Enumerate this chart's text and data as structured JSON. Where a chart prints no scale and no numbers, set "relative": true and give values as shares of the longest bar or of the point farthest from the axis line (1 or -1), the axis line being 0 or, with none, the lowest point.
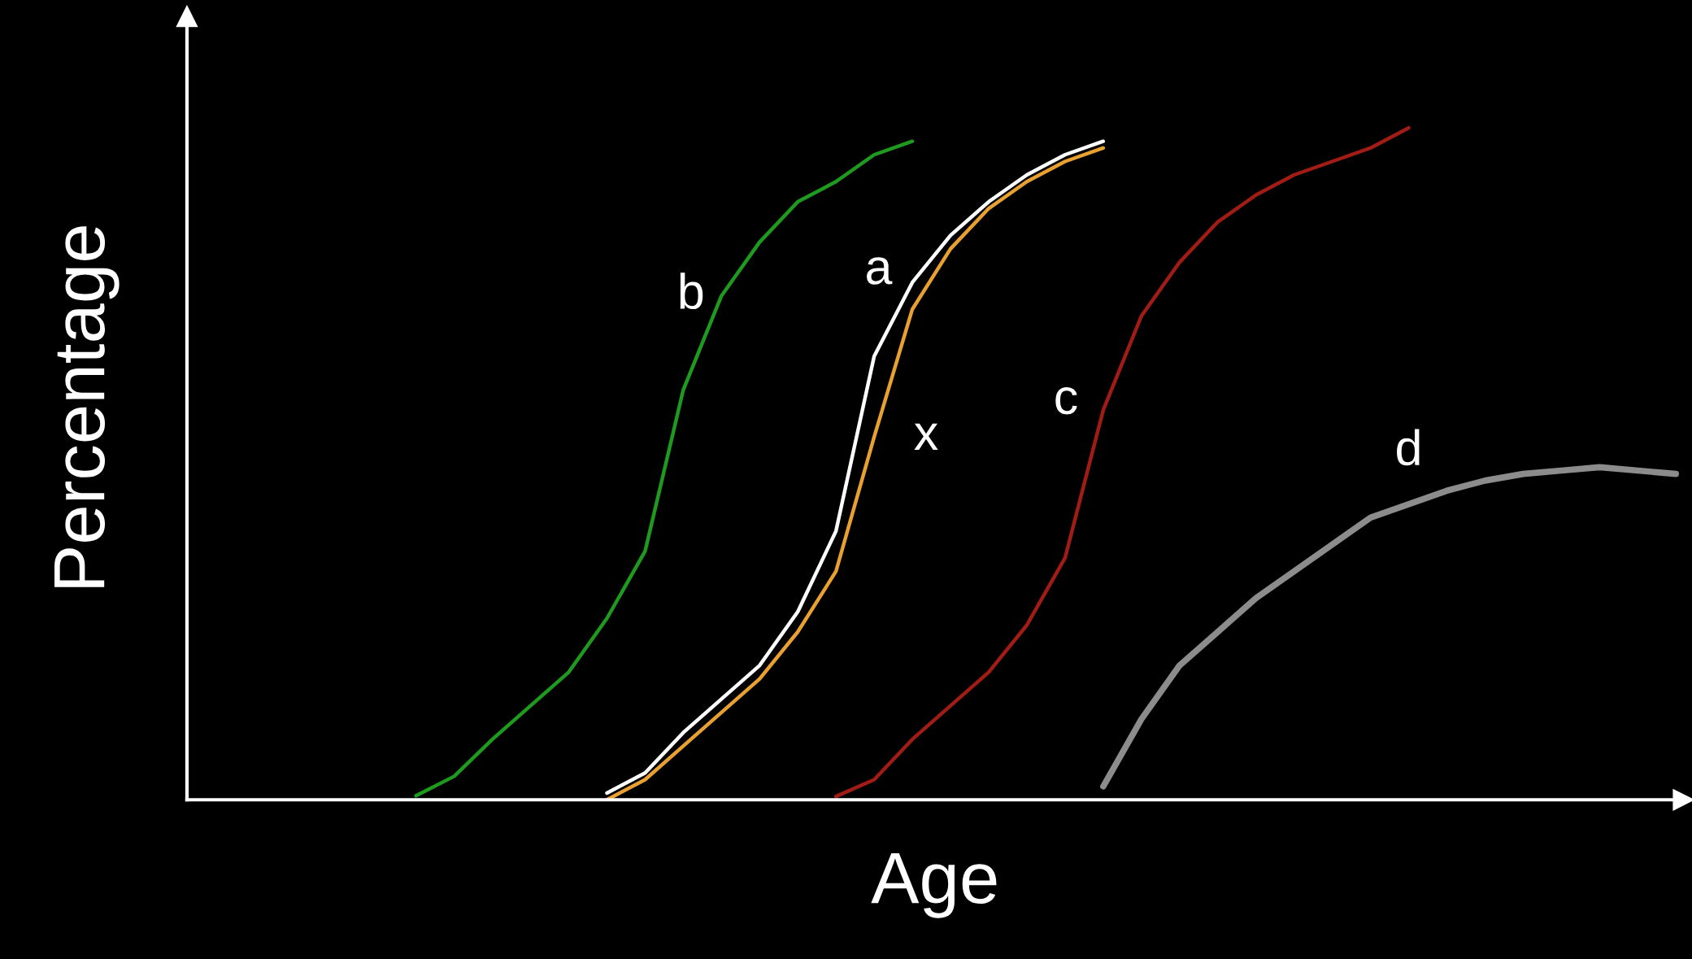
{
  "chart_data": {
    "type": "line",
    "relative": true,
    "xlabel": "Age",
    "ylabel": "Percentage",
    "categories": [
      null,
      null,
      null,
      null,
      null,
      null,
      null,
      null,
      null,
      null,
      null,
      null,
      null,
      null,
      null,
      null,
      null,
      null,
      null,
      null,
      null,
      null,
      null,
      null,
      null,
      null,
      null,
      null,
      null,
      null,
      null,
      null,
      null,
      null,
      null,
      null,
      null,
      null,
      null,
      null
    ],
    "series": [
      {
        "name": "b",
        "color": "#1e9a1e",
        "values": [
          null,
          null,
          null,
          null,
          null,
          null,
          0.006,
          0.035,
          0.09,
          0.14,
          0.19,
          0.27,
          0.37,
          0.61,
          0.75,
          0.83,
          0.89,
          0.92,
          0.96,
          0.98,
          null,
          null,
          null,
          null,
          null,
          null,
          null,
          null,
          null,
          null,
          null,
          null,
          null,
          null,
          null,
          null,
          null,
          null,
          null,
          null
        ]
      },
      {
        "name": "a",
        "color": "#ffffff",
        "values": [
          null,
          null,
          null,
          null,
          null,
          null,
          null,
          null,
          null,
          null,
          null,
          0.01,
          0.04,
          0.1,
          0.15,
          0.2,
          0.28,
          0.4,
          0.66,
          0.77,
          0.84,
          0.89,
          0.93,
          0.96,
          0.98,
          null,
          null,
          null,
          null,
          null,
          null,
          null,
          null,
          null,
          null,
          null,
          null,
          null,
          null,
          null
        ]
      },
      {
        "name": "x",
        "color": "#e8a030",
        "values": [
          null,
          null,
          null,
          null,
          null,
          null,
          null,
          null,
          null,
          null,
          null,
          0,
          0.03,
          0.08,
          0.13,
          0.18,
          0.25,
          0.34,
          0.54,
          0.73,
          0.82,
          0.88,
          0.92,
          0.95,
          0.97,
          null,
          null,
          null,
          null,
          null,
          null,
          null,
          null,
          null,
          null,
          null,
          null,
          null,
          null,
          null
        ]
      },
      {
        "name": "c",
        "color": "#a01c14",
        "values": [
          null,
          null,
          null,
          null,
          null,
          null,
          null,
          null,
          null,
          null,
          null,
          null,
          null,
          null,
          null,
          null,
          null,
          0.005,
          0.03,
          0.09,
          0.14,
          0.19,
          0.26,
          0.36,
          0.58,
          0.72,
          0.8,
          0.86,
          0.9,
          0.93,
          0.95,
          0.97,
          1.0,
          null,
          null,
          null,
          null,
          null,
          null,
          null
        ]
      },
      {
        "name": "d",
        "color": "#8c8c8c",
        "values": [
          null,
          null,
          null,
          null,
          null,
          null,
          null,
          null,
          null,
          null,
          null,
          null,
          null,
          null,
          null,
          null,
          null,
          null,
          null,
          null,
          null,
          null,
          null,
          null,
          0.02,
          0.12,
          0.2,
          0.25,
          0.3,
          0.34,
          0.38,
          0.42,
          0.44,
          0.46,
          0.475,
          0.485,
          0.49,
          0.495,
          0.49,
          0.485
        ]
      }
    ]
  }
}
